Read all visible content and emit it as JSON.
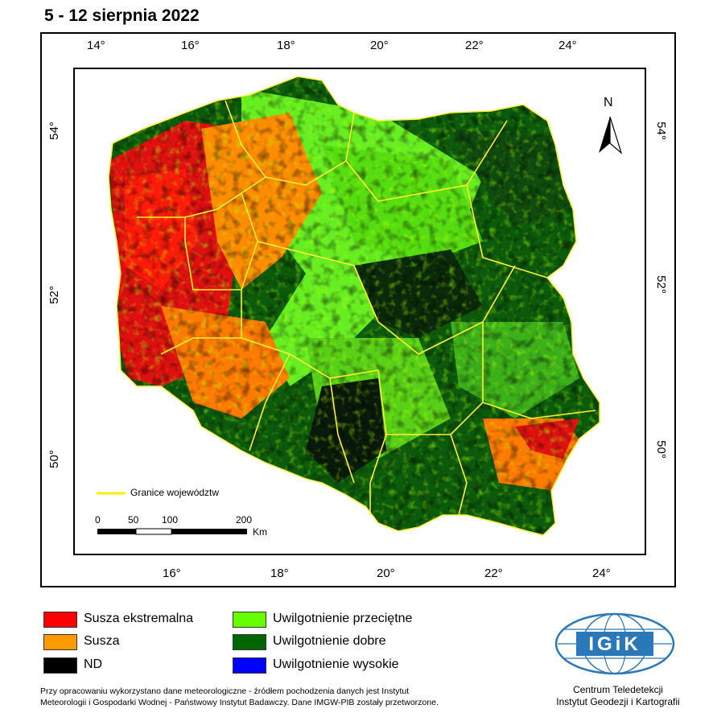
{
  "title": "5 - 12 sierpnia 2022",
  "top_ticks": [
    "14°",
    "16°",
    "18°",
    "20°",
    "22°",
    "24°"
  ],
  "bottom_ticks": [
    "16°",
    "18°",
    "20°",
    "22°",
    "24°"
  ],
  "left_ticks": [
    "54°",
    "52°",
    "50°"
  ],
  "right_ticks": [
    "54°",
    "52°",
    "50°"
  ],
  "north_label": "N",
  "boundary_legend": "Granice województw",
  "scale": {
    "labels": [
      "0",
      "50",
      "100",
      "200"
    ],
    "unit": "Km"
  },
  "legend": [
    {
      "label": "Susza ekstremalna",
      "color": "#ff0000"
    },
    {
      "label": "Susza",
      "color": "#ff9900"
    },
    {
      "label": "ND",
      "color": "#000000"
    },
    {
      "label": "Uwilgotnienie przeciętne",
      "color": "#66ff00"
    },
    {
      "label": "Uwilgotnienie dobre",
      "color": "#006600"
    },
    {
      "label": "Uwilgotnienie wysokie",
      "color": "#0000ff"
    }
  ],
  "note_lines": [
    "Przy opracowaniu wykorzystano dane meteorologiczne - źródłem pochodzenia danych jest Instytut",
    "Meteorologii i Gospodarki Wodnej - Państwowy Instytut Badawczy. Dane IMGW-PIB zostały przetworzone."
  ],
  "logo": {
    "mark": "IGiK",
    "line1": "Centrum Teledetekcji",
    "line2": "Instytut Geodezji i Kartografii"
  }
}
